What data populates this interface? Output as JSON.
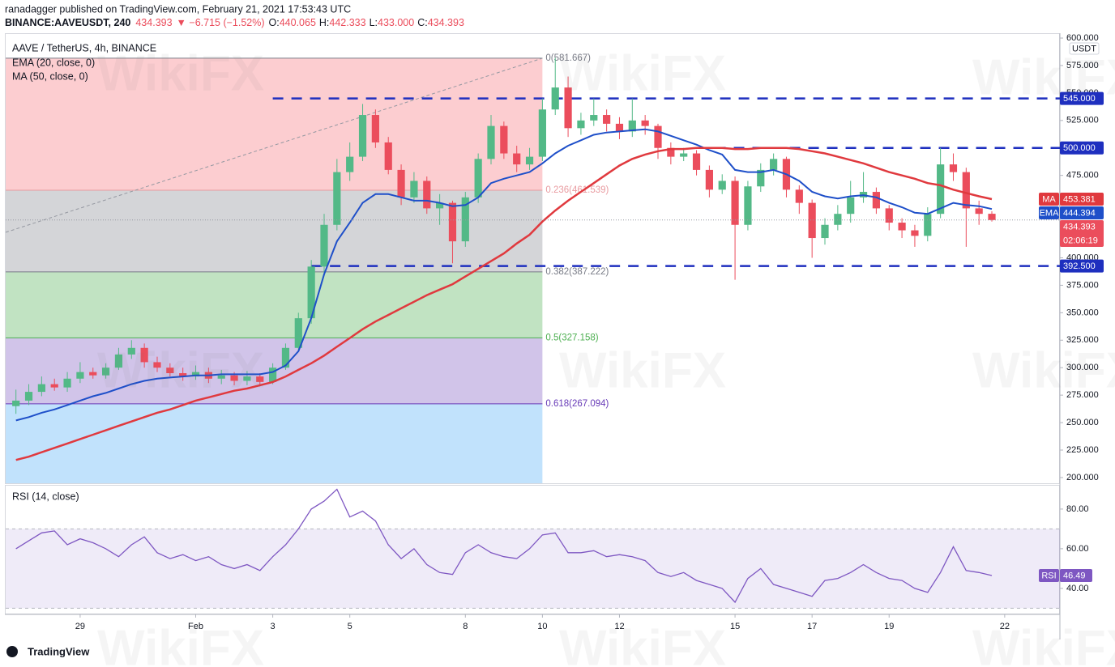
{
  "header": {
    "byline": "ranadagger published on TradingView.com, February 21, 2021 17:53:43 UTC",
    "symbol": "BINANCE:AAVEUSDT, 240",
    "change": "▼ −6.715 (−1.52%)",
    "ohlc": [
      {
        "label": "O:",
        "value": "440.065"
      },
      {
        "label": "H:",
        "value": "442.333"
      },
      {
        "label": "L:",
        "value": "433.000"
      },
      {
        "label": "C:",
        "value": "434.393"
      }
    ]
  },
  "watermark": "WikiFX",
  "footer": {
    "brand": "TradingView"
  },
  "chart_data": [
    {
      "type": "candlestick",
      "title": "AAVE / TetherUS, 4h, BINANCE",
      "currency": "USDT",
      "countdown": "02:06:19",
      "up_color": "#53b987",
      "down_color": "#eb4d5c",
      "grid": false,
      "xlim": [
        -0.8,
        81.3
      ],
      "xticks": [
        {
          "value": 5,
          "label": "29"
        },
        {
          "value": 14,
          "label": "Feb"
        },
        {
          "value": 20,
          "label": "3"
        },
        {
          "value": 26,
          "label": "5"
        },
        {
          "value": 35,
          "label": "8"
        },
        {
          "value": 41,
          "label": "10"
        },
        {
          "value": 47,
          "label": "12"
        },
        {
          "value": 56,
          "label": "15"
        },
        {
          "value": 62,
          "label": "17"
        },
        {
          "value": 68,
          "label": "19"
        },
        {
          "value": 77,
          "label": "22"
        }
      ],
      "ylim": [
        194.8,
        603.7
      ],
      "yticks": [
        {
          "value": 200,
          "label": "200.000"
        },
        {
          "value": 225,
          "label": "225.000"
        },
        {
          "value": 250,
          "label": "250.000"
        },
        {
          "value": 275,
          "label": "275.000"
        },
        {
          "value": 300,
          "label": "300.000"
        },
        {
          "value": 325,
          "label": "325.000"
        },
        {
          "value": 350,
          "label": "350.000"
        },
        {
          "value": 375,
          "label": "375.000"
        },
        {
          "value": 400,
          "label": "400.000"
        },
        {
          "value": 425,
          "label": "425.000"
        },
        {
          "value": 450,
          "label": "450.000"
        },
        {
          "value": 475,
          "label": "475.000"
        },
        {
          "value": 500,
          "label": "500.000"
        },
        {
          "value": 525,
          "label": "525.000"
        },
        {
          "value": 550,
          "label": "550.000"
        },
        {
          "value": 575,
          "label": "575.000"
        },
        {
          "value": 600,
          "label": "600.000"
        }
      ],
      "open": [
        265,
        270,
        278,
        285,
        282,
        290,
        296,
        293,
        300,
        312,
        318,
        305,
        300,
        295,
        292,
        296,
        290,
        293,
        288,
        292,
        287,
        300,
        318,
        345,
        392,
        430,
        478,
        492,
        530,
        505,
        480,
        455,
        470,
        445,
        450,
        415,
        455,
        490,
        520,
        495,
        485,
        492,
        535,
        555,
        518,
        525,
        530,
        522,
        515,
        525,
        520,
        500,
        492,
        495,
        480,
        462,
        470,
        430,
        465,
        480,
        490,
        462,
        450,
        418,
        430,
        440,
        455,
        460,
        445,
        432,
        425,
        420,
        440,
        485,
        478,
        445,
        440.065
      ],
      "high": [
        280,
        285,
        292,
        290,
        296,
        305,
        300,
        304,
        318,
        325,
        322,
        310,
        304,
        300,
        302,
        300,
        298,
        296,
        297,
        295,
        304,
        322,
        350,
        398,
        440,
        490,
        505,
        540,
        535,
        510,
        485,
        478,
        474,
        458,
        452,
        460,
        495,
        530,
        524,
        502,
        500,
        545,
        582,
        565,
        532,
        545,
        535,
        528,
        545,
        530,
        522,
        505,
        500,
        498,
        484,
        476,
        474,
        470,
        486,
        495,
        492,
        466,
        453,
        436,
        448,
        470,
        478,
        464,
        448,
        436,
        430,
        446,
        500,
        495,
        482,
        452,
        442.333
      ],
      "low": [
        258,
        266,
        274,
        279,
        278,
        286,
        290,
        290,
        298,
        308,
        300,
        296,
        292,
        288,
        289,
        286,
        285,
        284,
        284,
        283,
        285,
        298,
        315,
        340,
        385,
        425,
        470,
        488,
        500,
        476,
        448,
        450,
        440,
        430,
        395,
        410,
        450,
        485,
        490,
        478,
        480,
        488,
        530,
        510,
        512,
        520,
        515,
        508,
        510,
        512,
        490,
        485,
        488,
        475,
        455,
        458,
        380,
        425,
        460,
        475,
        455,
        440,
        400,
        412,
        425,
        432,
        450,
        440,
        425,
        418,
        410,
        415,
        436,
        470,
        410,
        430,
        433
      ],
      "close": [
        270,
        278,
        285,
        282,
        290,
        296,
        293,
        300,
        312,
        318,
        305,
        300,
        295,
        292,
        296,
        290,
        293,
        288,
        292,
        287,
        300,
        318,
        345,
        392,
        430,
        478,
        492,
        530,
        505,
        480,
        455,
        470,
        445,
        450,
        415,
        455,
        490,
        520,
        495,
        485,
        492,
        535,
        555,
        518,
        525,
        530,
        522,
        515,
        525,
        520,
        500,
        492,
        495,
        480,
        462,
        470,
        430,
        465,
        480,
        490,
        462,
        450,
        418,
        430,
        440,
        455,
        460,
        445,
        432,
        425,
        420,
        440,
        485,
        478,
        445,
        440,
        434.393
      ],
      "series": [
        {
          "name": "EMA (20, close, 0)",
          "badge": "EMA",
          "color": "#1e4fc9",
          "values": [
            252,
            255,
            259,
            262,
            266,
            270,
            274,
            277,
            281,
            285,
            288,
            290,
            291,
            292,
            293,
            293,
            294,
            294,
            294,
            294,
            296,
            302,
            315,
            345,
            385,
            415,
            432,
            450,
            458,
            458,
            455,
            452,
            452,
            450,
            447,
            448,
            455,
            468,
            472,
            475,
            478,
            486,
            495,
            502,
            507,
            512,
            514,
            515,
            516,
            517,
            515,
            511,
            507,
            503,
            498,
            494,
            480,
            478,
            478,
            480,
            476,
            470,
            460,
            456,
            454,
            456,
            457,
            455,
            450,
            446,
            441,
            440,
            445,
            450,
            448,
            447,
            444.394
          ]
        },
        {
          "name": "MA (50, close, 0)",
          "badge": "MA",
          "color": "#e0393e",
          "values": [
            216,
            219,
            223,
            227,
            231,
            235,
            239,
            243,
            247,
            251,
            255,
            259,
            262,
            266,
            270,
            273,
            276,
            279,
            281,
            284,
            287,
            292,
            298,
            304,
            311,
            319,
            327,
            335,
            342,
            348,
            354,
            360,
            366,
            371,
            376,
            383,
            390,
            397,
            404,
            413,
            421,
            433,
            443,
            452,
            460,
            468,
            476,
            484,
            490,
            494,
            497,
            499,
            499,
            500,
            500,
            500,
            499,
            499,
            500,
            500,
            500,
            499,
            497,
            495,
            492,
            489,
            486,
            482,
            478,
            475,
            472,
            468,
            466,
            462,
            459,
            456,
            453.381
          ]
        }
      ],
      "level_color": "#1e2fbf",
      "levels": [
        {
          "value": 545,
          "label": "545.000",
          "from": 20
        },
        {
          "value": 500,
          "label": "500.000",
          "from": 53
        },
        {
          "value": 392.5,
          "label": "392.500",
          "from": 23
        }
      ],
      "fib": {
        "end": 41,
        "levels": [
          {
            "value": 581.667,
            "label": "0(581.667)",
            "color": "#787b86"
          },
          {
            "value": 461.539,
            "label": "0.236(461.539)",
            "color": "#e99ca1"
          },
          {
            "value": 387.222,
            "label": "0.382(387.222)",
            "color": "#787b86"
          },
          {
            "value": 327.158,
            "label": "0.5(327.158)",
            "color": "#4caf50"
          },
          {
            "value": 267.094,
            "label": "0.618(267.094)",
            "color": "#673ab7"
          }
        ],
        "fills": [
          "rgba(242,54,69,0.25)",
          "rgba(120,123,134,0.32)",
          "rgba(76,175,80,0.35)",
          "rgba(103,58,183,0.30)",
          "rgba(33,150,243,0.28)"
        ]
      }
    },
    {
      "type": "line",
      "title": "RSI (14, close)",
      "badge": "RSI",
      "color": "#7e57c2",
      "band": [
        30,
        70
      ],
      "band_color": "rgba(126,87,194,0.12)",
      "ylim": [
        27.3,
        91.8
      ],
      "yticks": [
        {
          "value": 40,
          "label": "40.00"
        },
        {
          "value": 60,
          "label": "60.00"
        },
        {
          "value": 80,
          "label": "80.00"
        }
      ],
      "values": [
        60,
        64,
        68,
        69,
        62,
        65,
        63,
        60,
        56,
        62,
        66,
        58,
        55,
        57,
        54,
        56,
        52,
        50,
        52,
        49,
        56,
        62,
        70,
        80,
        84,
        90,
        76,
        79,
        74,
        62,
        55,
        60,
        52,
        48,
        47,
        58,
        62,
        58,
        56,
        55,
        60,
        67,
        68,
        58,
        58,
        59,
        56,
        57,
        56,
        54,
        48,
        46,
        48,
        44,
        42,
        40,
        33,
        45,
        50,
        42,
        40,
        38,
        36,
        44,
        45,
        48,
        52,
        48,
        45,
        44,
        40,
        38,
        48,
        61,
        49,
        48,
        46.49
      ]
    }
  ]
}
